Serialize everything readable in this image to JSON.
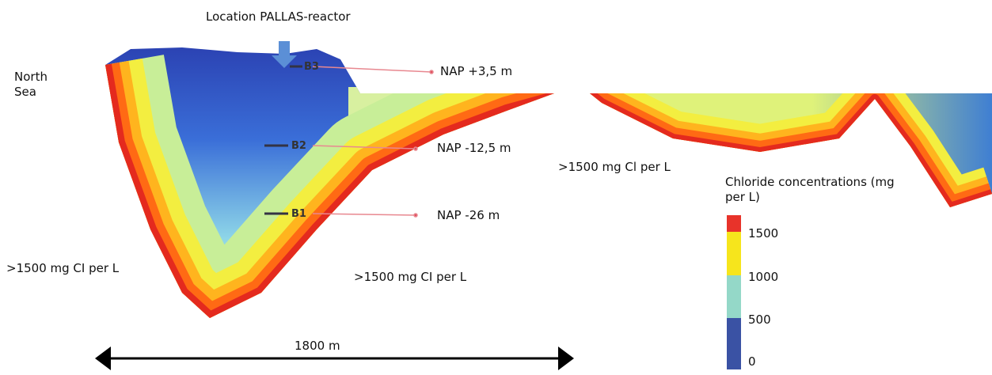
{
  "header": {
    "title": "Location PALLAS-reactor"
  },
  "labels": {
    "sea": "North Sea",
    "left": ">1500 mg CI per L",
    "bottom": ">1500 mg CI per L",
    "right": ">1500 mg Cl per L",
    "scale": "1800 m"
  },
  "boreholes": [
    {
      "name": "B3",
      "level": "NAP +3,5 m"
    },
    {
      "name": "B2",
      "level": "NAP -12,5 m"
    },
    {
      "name": "B1",
      "level": "NAP -26 m"
    }
  ],
  "legend": {
    "title": "Chloride concentrations (mg per L)",
    "ticks": [
      1500,
      1000,
      500,
      0
    ]
  }
}
